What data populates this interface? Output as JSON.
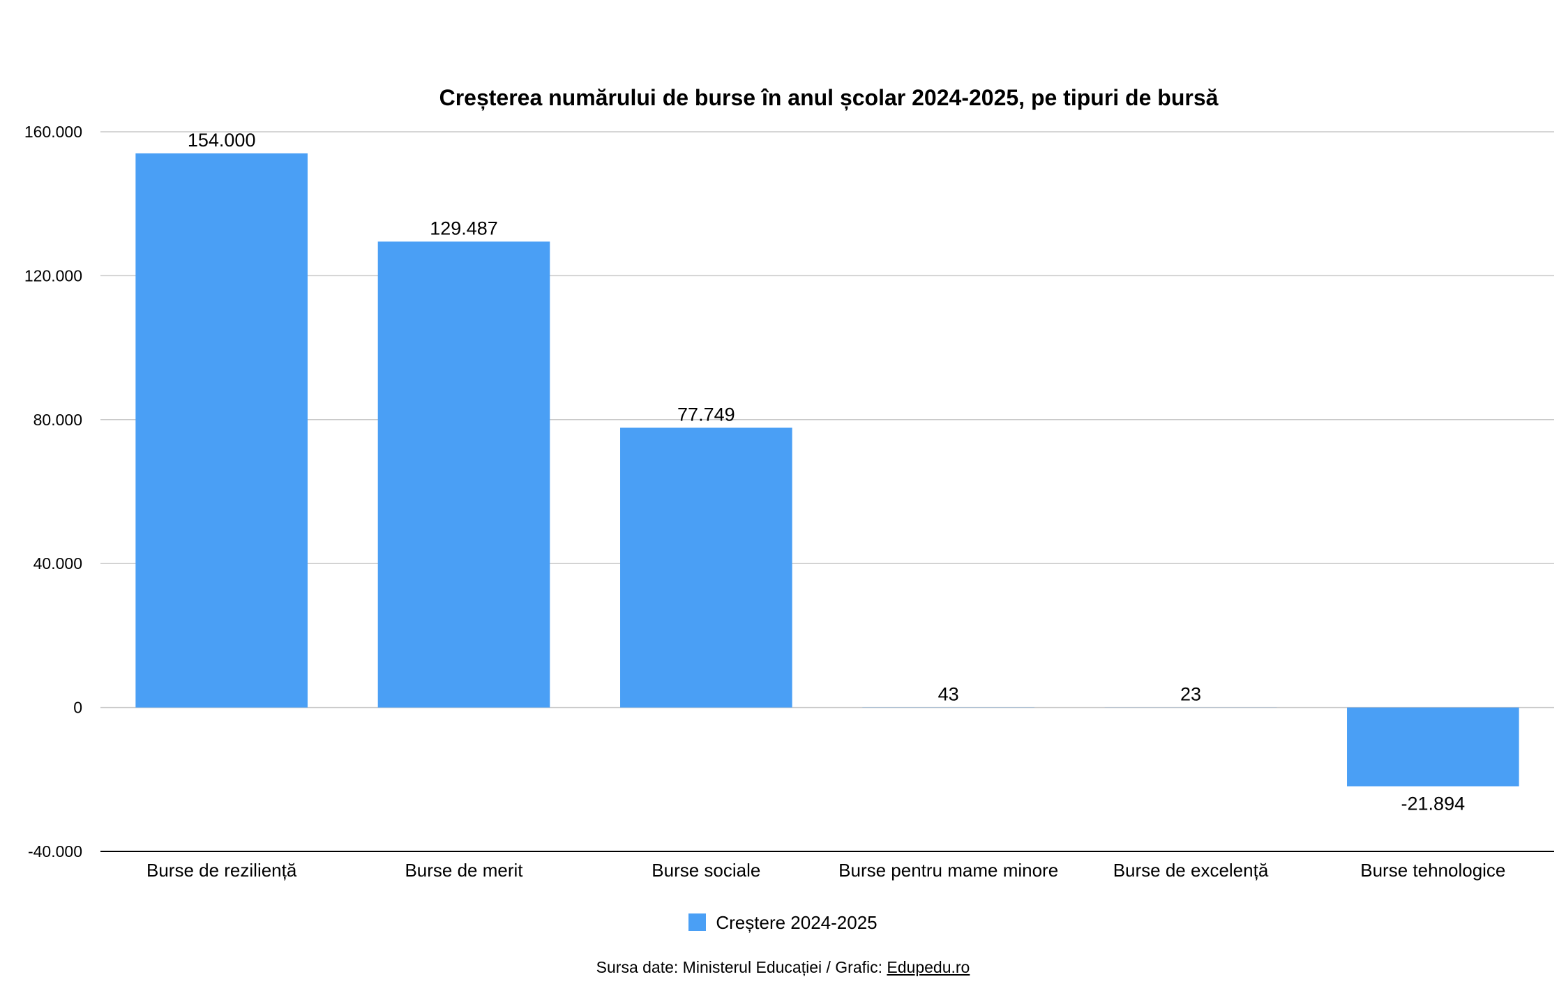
{
  "chart_data": {
    "type": "bar",
    "title": "Creșterea numărului de burse în anul școlar 2024-2025, pe tipuri de bursă",
    "categories": [
      "Burse de reziliență",
      "Burse de merit",
      "Burse sociale",
      "Burse pentru mame minore",
      "Burse de excelență",
      "Burse tehnologice"
    ],
    "series": [
      {
        "name": "Creștere 2024-2025",
        "values": [
          154000,
          129487,
          77749,
          43,
          23,
          -21894
        ],
        "color": "#4A9FF5"
      }
    ],
    "data_labels": [
      "154.000",
      "129.487",
      "77.749",
      "43",
      "23",
      "-21.894"
    ],
    "ylim": [
      -40000,
      160000
    ],
    "yticks": [
      -40000,
      0,
      40000,
      80000,
      120000,
      160000
    ],
    "ytick_labels": [
      "-40.000",
      "0",
      "40.000",
      "80.000",
      "120.000",
      "160.000"
    ],
    "grid": true,
    "legend": "bottom",
    "xlabel": "",
    "ylabel": ""
  },
  "legend_label": "Creștere 2024-2025",
  "source": {
    "prefix": "Sursa date: Ministerul Educației / Grafic: ",
    "link": "Edupedu.ro"
  }
}
